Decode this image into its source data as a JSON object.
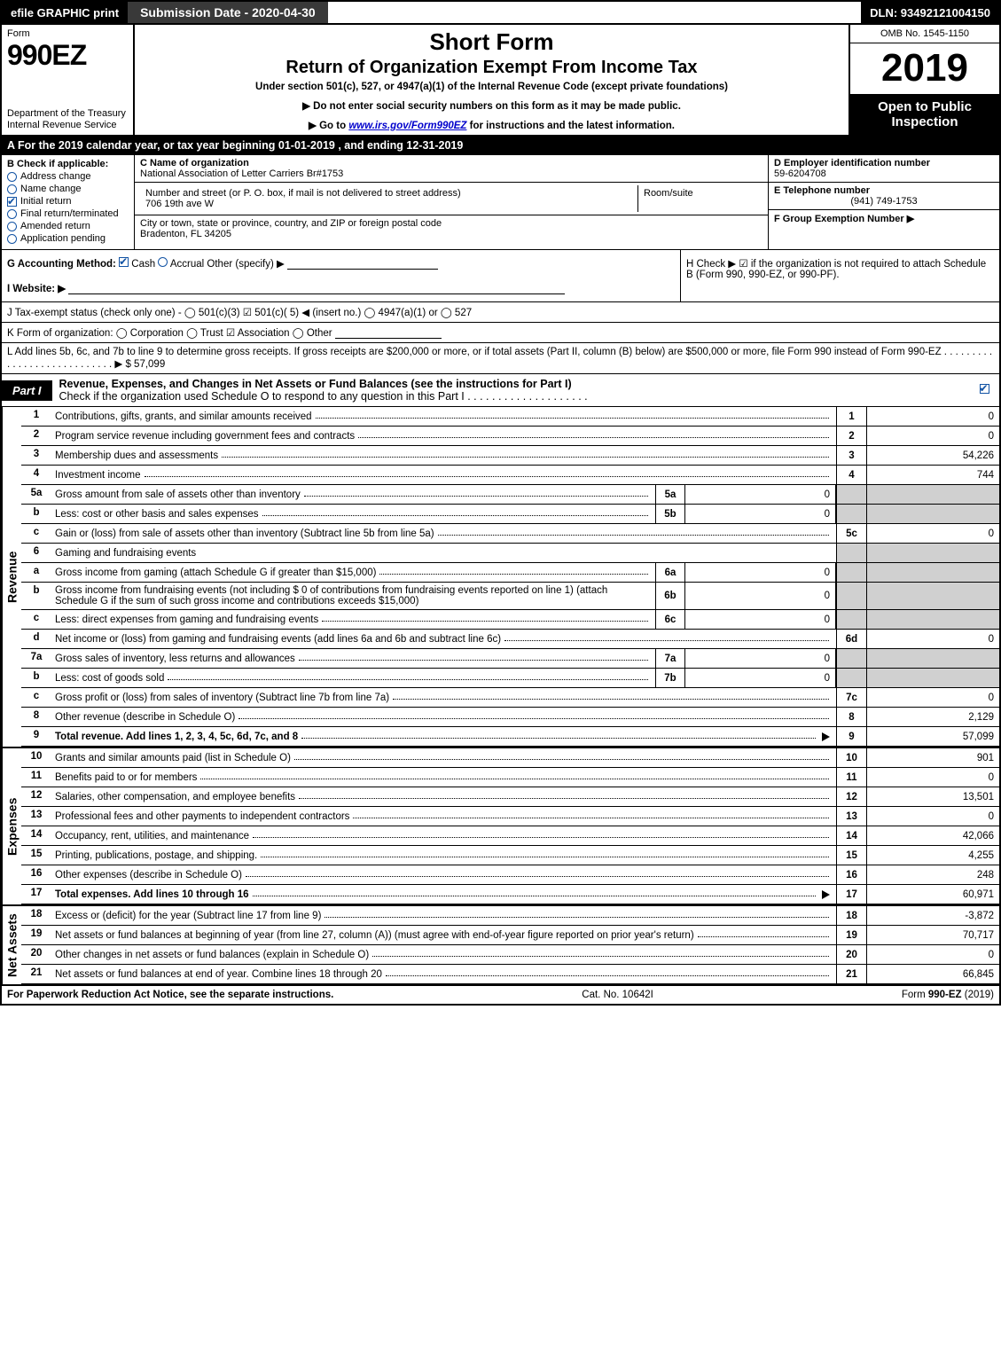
{
  "topbar": {
    "efile": "efile GRAPHIC print",
    "submission": "Submission Date - 2020-04-30",
    "dln": "DLN: 93492121004150"
  },
  "header": {
    "form_word": "Form",
    "form_num": "990EZ",
    "dept1": "Department of the Treasury",
    "dept2": "Internal Revenue Service",
    "title": "Short Form",
    "subtitle": "Return of Organization Exempt From Income Tax",
    "under": "Under section 501(c), 527, or 4947(a)(1) of the Internal Revenue Code (except private foundations)",
    "warn": "▶ Do not enter social security numbers on this form as it may be made public.",
    "goto_pre": "▶ Go to ",
    "goto_link": "www.irs.gov/Form990EZ",
    "goto_post": " for instructions and the latest information.",
    "omb": "OMB No. 1545-1150",
    "year": "2019",
    "open": "Open to Public Inspection"
  },
  "lineA": "A  For the 2019 calendar year, or tax year beginning 01-01-2019 , and ending 12-31-2019",
  "colB": {
    "caption": "B  Check if applicable:",
    "items": [
      {
        "label": "Address change",
        "checked": false,
        "shape": "round"
      },
      {
        "label": "Name change",
        "checked": false,
        "shape": "round"
      },
      {
        "label": "Initial return",
        "checked": true,
        "shape": "square"
      },
      {
        "label": "Final return/terminated",
        "checked": false,
        "shape": "round"
      },
      {
        "label": "Amended return",
        "checked": false,
        "shape": "round"
      },
      {
        "label": "Application pending",
        "checked": false,
        "shape": "round"
      }
    ]
  },
  "colC": {
    "c_cap": "C Name of organization",
    "c_val": "National Association of Letter Carriers Br#1753",
    "addr_cap": "Number and street (or P. O. box, if mail is not delivered to street address)",
    "addr_val": "706 19th ave W",
    "room_cap": "Room/suite",
    "city_cap": "City or town, state or province, country, and ZIP or foreign postal code",
    "city_val": "Bradenton, FL  34205"
  },
  "colDEF": {
    "d_cap": "D Employer identification number",
    "d_val": "59-6204708",
    "e_cap": "E Telephone number",
    "e_val": "(941) 749-1753",
    "f_cap": "F Group Exemption Number   ▶"
  },
  "rowG": {
    "pre": "G Accounting Method:   ",
    "cash": "Cash  ",
    "accrual": "Accrual   Other (specify) ▶",
    "h": "H   Check ▶  ☑  if the organization is not required to attach Schedule B (Form 990, 990-EZ, or 990-PF)."
  },
  "rowI": "I Website: ▶",
  "rowJ": "J Tax-exempt status (check only one) -  ◯ 501(c)(3)  ☑ 501(c)( 5) ◀ (insert no.)  ◯ 4947(a)(1) or  ◯ 527",
  "rowK": "K Form of organization:   ◯ Corporation   ◯ Trust   ☑ Association   ◯ Other",
  "rowL": "L Add lines 5b, 6c, and 7b to line 9 to determine gross receipts. If gross receipts are $200,000 or more, or if total assets (Part II, column (B) below) are $500,000 or more, file Form 990 instead of Form 990-EZ  .  .  .  .  .  .  .  .  .  .  .  .  .  .  .  .  .  .  .  .  .  .  .  .  .  .  .  .  ▶ $ 57,099",
  "part1": {
    "tag": "Part I",
    "title": "Revenue, Expenses, and Changes in Net Assets or Fund Balances (see the instructions for Part I)",
    "sub": "Check if the organization used Schedule O to respond to any question in this Part I  .  .  .  .  .  .  .  .  .  .  .  .  .  .  .  .  .  .  .  ."
  },
  "revenue_label": "Revenue",
  "expenses_label": "Expenses",
  "netassets_label": "Net Assets",
  "lines_rev": [
    {
      "n": "1",
      "d": "Contributions, gifts, grants, and similar amounts received",
      "rn": "1",
      "rv": "0"
    },
    {
      "n": "2",
      "d": "Program service revenue including government fees and contracts",
      "rn": "2",
      "rv": "0"
    },
    {
      "n": "3",
      "d": "Membership dues and assessments",
      "rn": "3",
      "rv": "54,226"
    },
    {
      "n": "4",
      "d": "Investment income",
      "rn": "4",
      "rv": "744"
    }
  ],
  "lines_5": [
    {
      "n": "5a",
      "d": "Gross amount from sale of assets other than inventory",
      "mn": "5a",
      "mv": "0"
    },
    {
      "n": "b",
      "d": "Less: cost or other basis and sales expenses",
      "mn": "5b",
      "mv": "0"
    },
    {
      "n": "c",
      "d": "Gain or (loss) from sale of assets other than inventory (Subtract line 5b from line 5a)",
      "rn": "5c",
      "rv": "0"
    }
  ],
  "line6_hdr": {
    "n": "6",
    "d": "Gaming and fundraising events"
  },
  "lines_6": [
    {
      "n": "a",
      "d": "Gross income from gaming (attach Schedule G if greater than $15,000)",
      "mn": "6a",
      "mv": "0"
    },
    {
      "n": "b",
      "d": "Gross income from fundraising events (not including $  0                    of contributions from fundraising events reported on line 1) (attach Schedule G if the sum of such gross income and contributions exceeds $15,000)",
      "mn": "6b",
      "mv": "0"
    },
    {
      "n": "c",
      "d": "Less: direct expenses from gaming and fundraising events",
      "mn": "6c",
      "mv": "0"
    },
    {
      "n": "d",
      "d": "Net income or (loss) from gaming and fundraising events (add lines 6a and 6b and subtract line 6c)",
      "rn": "6d",
      "rv": "0"
    }
  ],
  "lines_7": [
    {
      "n": "7a",
      "d": "Gross sales of inventory, less returns and allowances",
      "mn": "7a",
      "mv": "0"
    },
    {
      "n": "b",
      "d": "Less: cost of goods sold",
      "mn": "7b",
      "mv": "0"
    },
    {
      "n": "c",
      "d": "Gross profit or (loss) from sales of inventory (Subtract line 7b from line 7a)",
      "rn": "7c",
      "rv": "0"
    }
  ],
  "lines_89": [
    {
      "n": "8",
      "d": "Other revenue (describe in Schedule O)",
      "rn": "8",
      "rv": "2,129"
    },
    {
      "n": "9",
      "d": "Total revenue. Add lines 1, 2, 3, 4, 5c, 6d, 7c, and 8",
      "rn": "9",
      "rv": "57,099",
      "bold": true,
      "arrow": true
    }
  ],
  "lines_exp": [
    {
      "n": "10",
      "d": "Grants and similar amounts paid (list in Schedule O)",
      "rn": "10",
      "rv": "901"
    },
    {
      "n": "11",
      "d": "Benefits paid to or for members",
      "rn": "11",
      "rv": "0"
    },
    {
      "n": "12",
      "d": "Salaries, other compensation, and employee benefits",
      "rn": "12",
      "rv": "13,501"
    },
    {
      "n": "13",
      "d": "Professional fees and other payments to independent contractors",
      "rn": "13",
      "rv": "0"
    },
    {
      "n": "14",
      "d": "Occupancy, rent, utilities, and maintenance",
      "rn": "14",
      "rv": "42,066"
    },
    {
      "n": "15",
      "d": "Printing, publications, postage, and shipping.",
      "rn": "15",
      "rv": "4,255"
    },
    {
      "n": "16",
      "d": "Other expenses (describe in Schedule O)",
      "rn": "16",
      "rv": "248"
    },
    {
      "n": "17",
      "d": "Total expenses. Add lines 10 through 16",
      "rn": "17",
      "rv": "60,971",
      "bold": true,
      "arrow": true
    }
  ],
  "lines_na": [
    {
      "n": "18",
      "d": "Excess or (deficit) for the year (Subtract line 17 from line 9)",
      "rn": "18",
      "rv": "-3,872"
    },
    {
      "n": "19",
      "d": "Net assets or fund balances at beginning of year (from line 27, column (A)) (must agree with end-of-year figure reported on prior year's return)",
      "rn": "19",
      "rv": "70,717"
    },
    {
      "n": "20",
      "d": "Other changes in net assets or fund balances (explain in Schedule O)",
      "rn": "20",
      "rv": "0"
    },
    {
      "n": "21",
      "d": "Net assets or fund balances at end of year. Combine lines 18 through 20",
      "rn": "21",
      "rv": "66,845"
    }
  ],
  "footer": {
    "left": "For Paperwork Reduction Act Notice, see the separate instructions.",
    "mid": "Cat. No. 10642I",
    "right_pre": "Form ",
    "right_b": "990-EZ",
    "right_post": " (2019)"
  }
}
